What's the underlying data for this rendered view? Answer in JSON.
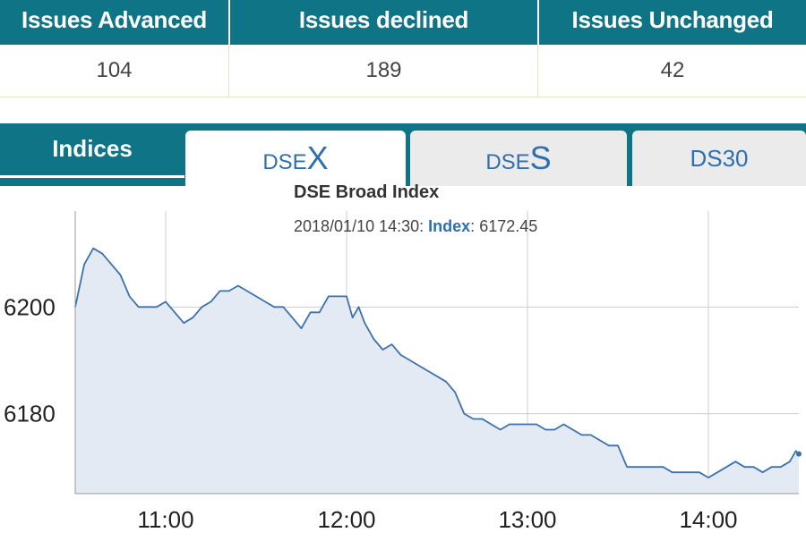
{
  "summary": {
    "headers": [
      "Issues Advanced",
      "Issues declined",
      "Issues Unchanged"
    ],
    "values": [
      "104",
      "189",
      "42"
    ]
  },
  "tabs": {
    "indices_label": "Indices",
    "dsex": {
      "prefix": "DSE",
      "suffix": "X"
    },
    "dses": {
      "prefix": "DSE",
      "suffix": "S"
    },
    "ds30": "DS30",
    "active": "DSEX"
  },
  "chart": {
    "title": "DSE Broad Index",
    "tooltip": {
      "datetime": "2018/01/10 14:30:",
      "label": "Index",
      "colon": ":",
      "value": "6172.45"
    }
  },
  "colors": {
    "header_bg": "#0f7485",
    "line": "#3b72ad",
    "fill": "#e3eaf3",
    "link": "#2e6fae"
  },
  "chart_data": {
    "type": "area",
    "title": "DSE Broad Index",
    "xlabel": "",
    "ylabel": "",
    "x_ticks": [
      "11:00",
      "12:00",
      "13:00",
      "14:00"
    ],
    "y_ticks": [
      6180,
      6200
    ],
    "xlim": [
      "10:30",
      "14:30"
    ],
    "ylim": [
      6165,
      6218
    ],
    "grid": true,
    "series": [
      {
        "x": [
          "10:30",
          "10:33",
          "10:36",
          "10:39",
          "10:42",
          "10:45",
          "10:48",
          "10:51",
          "10:54",
          "10:57",
          "11:00",
          "11:03",
          "11:06",
          "11:09",
          "11:12",
          "11:15",
          "11:18",
          "11:21",
          "11:24",
          "11:27",
          "11:30",
          "11:33",
          "11:36",
          "11:39",
          "11:42",
          "11:45",
          "11:48",
          "11:51",
          "11:54",
          "11:57",
          "12:00",
          "12:02",
          "12:04",
          "12:06",
          "12:09",
          "12:12",
          "12:15",
          "12:18",
          "12:21",
          "12:24",
          "12:27",
          "12:30",
          "12:33",
          "12:36",
          "12:39",
          "12:42",
          "12:45",
          "12:48",
          "12:51",
          "12:54",
          "12:57",
          "13:00",
          "13:03",
          "13:06",
          "13:09",
          "13:12",
          "13:15",
          "13:18",
          "13:21",
          "13:24",
          "13:27",
          "13:30",
          "13:33",
          "13:36",
          "13:39",
          "13:42",
          "13:45",
          "13:48",
          "13:51",
          "13:54",
          "13:57",
          "14:00",
          "14:03",
          "14:06",
          "14:09",
          "14:12",
          "14:15",
          "14:18",
          "14:21",
          "14:24",
          "14:27",
          "14:29",
          "14:30"
        ],
        "y": [
          6200,
          6208,
          6211,
          6210,
          6208,
          6206,
          6202,
          6200,
          6200,
          6200,
          6201,
          6199,
          6197,
          6198,
          6200,
          6201,
          6203,
          6203,
          6204,
          6203,
          6202,
          6201,
          6200,
          6200,
          6198,
          6196,
          6199,
          6199,
          6202,
          6202,
          6202,
          6198,
          6200,
          6197,
          6194,
          6192,
          6193,
          6191,
          6190,
          6189,
          6188,
          6187,
          6186,
          6184,
          6180,
          6179,
          6179,
          6178,
          6177,
          6178,
          6178,
          6178,
          6178,
          6177,
          6177,
          6178,
          6177,
          6176,
          6176,
          6175,
          6174,
          6174,
          6170,
          6170,
          6170,
          6170,
          6170,
          6169,
          6169,
          6169,
          6169,
          6168,
          6169,
          6170,
          6171,
          6170,
          6170,
          6169,
          6170,
          6170,
          6171,
          6173,
          6172.45
        ]
      }
    ]
  }
}
